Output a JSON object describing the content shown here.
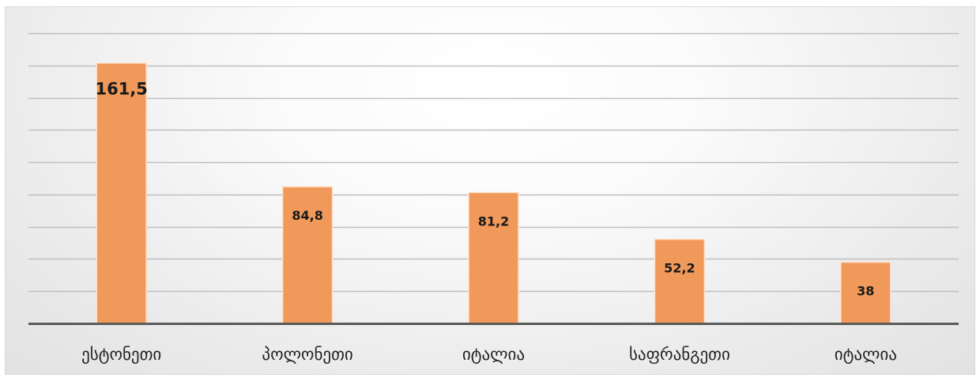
{
  "chart_data": {
    "type": "bar",
    "title": "",
    "xlabel": "",
    "ylabel": "",
    "categories": [
      "ესტონეთი",
      "პოლონეთი",
      "იტალია",
      "საფრანგეთი",
      "იტალია"
    ],
    "values": [
      161.5,
      84.8,
      81.2,
      52.2,
      38
    ],
    "data_labels": [
      "161,5",
      "84,8",
      "81,2",
      "52,2",
      "38"
    ],
    "ylim": [
      0,
      180
    ],
    "gridline_step": 20,
    "grid": true,
    "legend": "none",
    "bar_color": "#f0995a",
    "bar_outline": "#fde3cf",
    "axis_color": "#5a5a5a",
    "grid_color": "#bfbfbf",
    "label_color": "#1a1a1a"
  }
}
